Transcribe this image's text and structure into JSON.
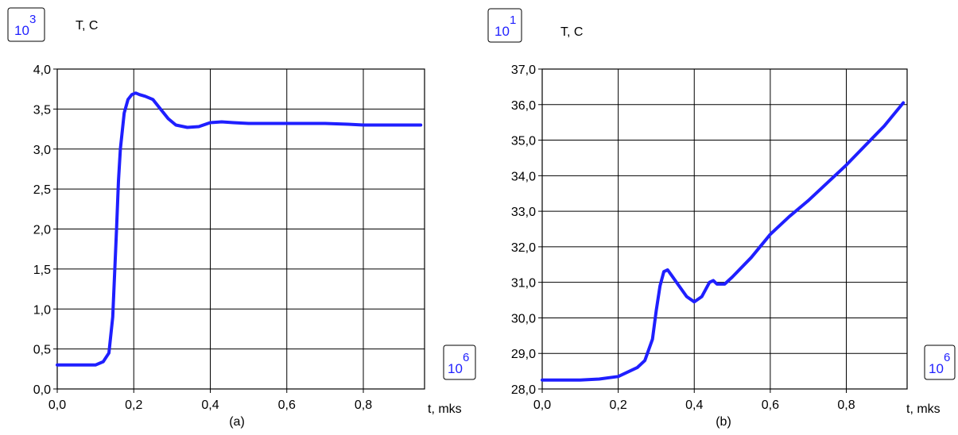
{
  "chart_data": [
    {
      "id": "a",
      "type": "line",
      "caption": "(a)",
      "ylabel": "T, C",
      "xlabel": "t, mks",
      "y_multiplier": {
        "base": "10",
        "exp": "3"
      },
      "x_multiplier": {
        "base": "10",
        "exp": "6"
      },
      "xlim": [
        0,
        0.96
      ],
      "ylim": [
        0,
        4
      ],
      "x_ticks": [
        "0,0",
        "0,2",
        "0,4",
        "0,6",
        "0,8"
      ],
      "x_tick_values": [
        0,
        0.2,
        0.4,
        0.6,
        0.8
      ],
      "y_ticks": [
        "0,0",
        "0,5",
        "1,0",
        "1,5",
        "2,0",
        "2,5",
        "3,0",
        "3,5",
        "4,0"
      ],
      "y_tick_values": [
        0,
        0.5,
        1.0,
        1.5,
        2.0,
        2.5,
        3.0,
        3.5,
        4.0
      ],
      "grid": true,
      "line_color": "#1f1fff",
      "series": [
        {
          "x": [
            0.0,
            0.1,
            0.12,
            0.135,
            0.145,
            0.155,
            0.16,
            0.165,
            0.175,
            0.185,
            0.195,
            0.205,
            0.215,
            0.23,
            0.25,
            0.27,
            0.29,
            0.31,
            0.34,
            0.37,
            0.4,
            0.43,
            0.46,
            0.5,
            0.6,
            0.7,
            0.76,
            0.8,
            0.9,
            0.95
          ],
          "y": [
            0.3,
            0.3,
            0.34,
            0.45,
            0.9,
            2.0,
            2.6,
            3.0,
            3.45,
            3.62,
            3.68,
            3.7,
            3.68,
            3.66,
            3.62,
            3.5,
            3.38,
            3.3,
            3.27,
            3.28,
            3.33,
            3.34,
            3.33,
            3.32,
            3.32,
            3.32,
            3.31,
            3.3,
            3.3,
            3.3
          ]
        }
      ]
    },
    {
      "id": "b",
      "type": "line",
      "caption": "(b)",
      "ylabel": "T, C",
      "xlabel": "t, mks",
      "y_multiplier": {
        "base": "10",
        "exp": "1"
      },
      "x_multiplier": {
        "base": "10",
        "exp": "6"
      },
      "xlim": [
        0,
        0.96
      ],
      "ylim": [
        28,
        37
      ],
      "x_ticks": [
        "0,0",
        "0,2",
        "0,4",
        "0,6",
        "0,8"
      ],
      "x_tick_values": [
        0,
        0.2,
        0.4,
        0.6,
        0.8
      ],
      "y_ticks": [
        "28,0",
        "29,0",
        "30,0",
        "31,0",
        "32,0",
        "33,0",
        "34,0",
        "35,0",
        "36,0",
        "37,0"
      ],
      "y_tick_values": [
        28,
        29,
        30,
        31,
        32,
        33,
        34,
        35,
        36,
        37
      ],
      "grid": true,
      "line_color": "#1f1fff",
      "series": [
        {
          "x": [
            0.0,
            0.1,
            0.15,
            0.2,
            0.25,
            0.27,
            0.29,
            0.3,
            0.31,
            0.32,
            0.33,
            0.34,
            0.36,
            0.38,
            0.4,
            0.42,
            0.44,
            0.45,
            0.46,
            0.48,
            0.5,
            0.55,
            0.6,
            0.65,
            0.7,
            0.8,
            0.9,
            0.95
          ],
          "y": [
            28.25,
            28.25,
            28.28,
            28.35,
            28.6,
            28.8,
            29.4,
            30.2,
            30.9,
            31.3,
            31.35,
            31.2,
            30.9,
            30.6,
            30.45,
            30.6,
            31.0,
            31.05,
            30.95,
            30.95,
            31.15,
            31.7,
            32.35,
            32.85,
            33.3,
            34.3,
            35.4,
            36.05
          ]
        }
      ]
    }
  ]
}
